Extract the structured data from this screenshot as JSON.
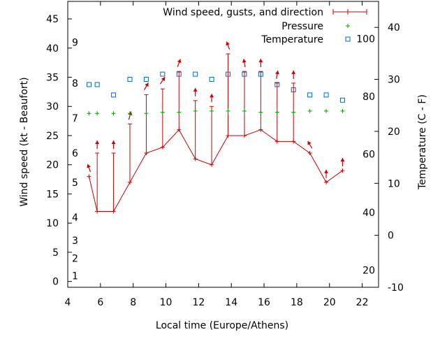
{
  "chart_data": {
    "type": "line",
    "xlabel": "Local time (Europe/Athens)",
    "ylabel": "Wind speed (kt - Beaufort)",
    "y2label": "Temperature (C - F)",
    "xlim": [
      4,
      23
    ],
    "ylim": [
      -1,
      48
    ],
    "y2lim": [
      -10,
      45
    ],
    "x_ticks": [
      4,
      6,
      8,
      10,
      12,
      14,
      16,
      18,
      20,
      22
    ],
    "y_ticks": [
      0,
      5,
      10,
      15,
      20,
      25,
      30,
      35,
      40,
      45
    ],
    "y2_ticks": [
      -10,
      0,
      10,
      20,
      30,
      40
    ],
    "beaufort_labels": [
      {
        "label": "1",
        "kt": 1
      },
      {
        "label": "2",
        "kt": 4
      },
      {
        "label": "3",
        "kt": 7
      },
      {
        "label": "4",
        "kt": 11
      },
      {
        "label": "5",
        "kt": 17
      },
      {
        "label": "6",
        "kt": 22
      },
      {
        "label": "7",
        "kt": 28
      },
      {
        "label": "8",
        "kt": 34
      },
      {
        "label": "9",
        "kt": 41
      }
    ],
    "fahrenheit_labels": [
      {
        "label": "20",
        "temp_c": -6.7
      },
      {
        "label": "40",
        "temp_c": 4.4
      },
      {
        "label": "60",
        "temp_c": 15.6
      },
      {
        "label": "80",
        "temp_c": 26.7
      },
      {
        "label": "100",
        "temp_c": 37.8
      }
    ],
    "legend": {
      "position": "top-right",
      "entries": [
        "Wind speed, gusts, and direction",
        "Pressure",
        "Temperature"
      ]
    },
    "colors": {
      "wind": "#cc0000",
      "pressure": "#00a000",
      "temperature": "#0066cc",
      "axis": "#000000"
    },
    "series": [
      {
        "name": "Wind speed, gusts, and direction",
        "x": [
          5.3,
          5.8,
          6.8,
          7.8,
          8.8,
          9.8,
          10.8,
          11.8,
          12.8,
          13.8,
          14.8,
          15.8,
          16.8,
          17.8,
          18.8,
          19.8,
          20.8
        ],
        "y": [
          18,
          12,
          12,
          17,
          22,
          23,
          26,
          21,
          20,
          25,
          25,
          26,
          24,
          24,
          22,
          17,
          19
        ],
        "gusts": [
          null,
          22,
          22,
          27,
          32,
          33,
          36,
          31,
          30,
          39,
          36,
          36,
          34,
          34,
          null,
          null,
          null
        ],
        "direction_deg": [
          160,
          180,
          180,
          195,
          210,
          215,
          200,
          180,
          180,
          160,
          170,
          180,
          190,
          180,
          150,
          180,
          180
        ]
      },
      {
        "name": "Pressure",
        "x": [
          5.3,
          5.8,
          6.8,
          7.8,
          8.8,
          9.8,
          10.8,
          11.8,
          12.8,
          13.8,
          14.8,
          15.8,
          16.8,
          17.8,
          18.8,
          19.8,
          20.8
        ],
        "y": [
          28.8,
          28.8,
          28.8,
          28.8,
          28.8,
          29.0,
          29.0,
          29.2,
          29.2,
          29.2,
          29.2,
          29.0,
          29.0,
          29.0,
          29.2,
          29.2,
          29.2
        ]
      },
      {
        "name": "Temperature",
        "x": [
          5.3,
          5.8,
          6.8,
          7.8,
          8.8,
          9.8,
          10.8,
          11.8,
          12.8,
          13.8,
          14.8,
          15.8,
          16.8,
          17.8,
          18.8,
          19.8,
          20.8
        ],
        "y": [
          29,
          29,
          27,
          30,
          30,
          31,
          31,
          31,
          30,
          31,
          31,
          31,
          29,
          28,
          27,
          27,
          26
        ]
      }
    ]
  }
}
